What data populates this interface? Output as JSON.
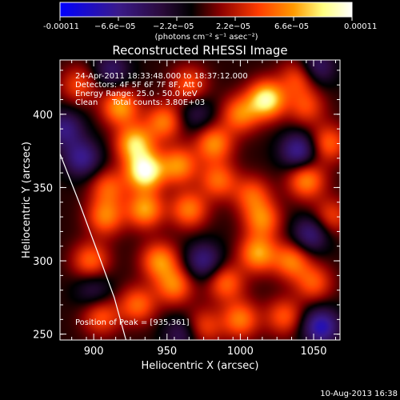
{
  "chart_data": {
    "type": "heatmap",
    "title": "Reconstructed RHESSI Image",
    "xlabel": "Heliocentric X (arcsec)",
    "ylabel": "Heliocentric Y (arcsec)",
    "xlim": [
      877,
      1068
    ],
    "ylim": [
      246,
      437
    ],
    "grid": false,
    "xticks": [
      900,
      950,
      1000,
      1050
    ],
    "yticks": [
      250,
      300,
      350,
      400
    ],
    "x_tick_labels": [
      "900",
      "950",
      "1000",
      "1050"
    ],
    "y_tick_labels": [
      "250",
      "300",
      "350",
      "400"
    ],
    "colorbar": {
      "range": [
        -0.00011,
        0.00011
      ],
      "tick_labels": [
        "-0.00011",
        "−6.6e−05",
        "−2.2e−05",
        "2.2e−05",
        "6.6e−05",
        "0.00011"
      ],
      "units_label": "(photons cm⁻² s⁻¹ asec⁻²)",
      "colors": [
        "#0000ff",
        "#3a1a8a",
        "#2a0a3a",
        "#000000",
        "#8b0000",
        "#ff3c00",
        "#ff9a00",
        "#ffff80",
        "#ffffff"
      ]
    },
    "annotations": {
      "time_range": "24-Apr-2011 18:33:48.000 to 18:37:12.000",
      "detectors": "Detectors: 4F 5F 6F 7F 8F, Att 0",
      "energy": "Energy Range: 25.0 - 50.0 keV",
      "method": "Clean",
      "total_counts": "Total counts: 3.80E+03",
      "peak": "Position of Peak = [935,361]"
    },
    "peak": {
      "x": 935,
      "y": 361
    },
    "limb_curve": [
      [
        877,
        373
      ],
      [
        890,
        340
      ],
      [
        903,
        305
      ],
      [
        914,
        275
      ],
      [
        922,
        246
      ]
    ],
    "sources": [
      {
        "x": 935,
        "y": 361,
        "w": 1.0
      },
      {
        "x": 928,
        "y": 380,
        "w": 0.75
      },
      {
        "x": 918,
        "y": 405,
        "w": 0.65
      },
      {
        "x": 948,
        "y": 395,
        "w": 0.55
      },
      {
        "x": 935,
        "y": 335,
        "w": 0.65
      },
      {
        "x": 958,
        "y": 365,
        "w": 0.6
      },
      {
        "x": 965,
        "y": 335,
        "w": 0.55
      },
      {
        "x": 908,
        "y": 330,
        "w": 0.55
      },
      {
        "x": 910,
        "y": 350,
        "w": 0.45
      },
      {
        "x": 898,
        "y": 300,
        "w": 0.5
      },
      {
        "x": 945,
        "y": 300,
        "w": 0.6
      },
      {
        "x": 955,
        "y": 283,
        "w": 0.55
      },
      {
        "x": 930,
        "y": 270,
        "w": 0.5
      },
      {
        "x": 905,
        "y": 262,
        "w": 0.45
      },
      {
        "x": 982,
        "y": 380,
        "w": 0.6
      },
      {
        "x": 1000,
        "y": 400,
        "w": 0.55
      },
      {
        "x": 1018,
        "y": 410,
        "w": 0.9
      },
      {
        "x": 985,
        "y": 355,
        "w": 0.5
      },
      {
        "x": 1015,
        "y": 328,
        "w": 0.55
      },
      {
        "x": 1012,
        "y": 305,
        "w": 0.65
      },
      {
        "x": 990,
        "y": 285,
        "w": 0.5
      },
      {
        "x": 1000,
        "y": 260,
        "w": 0.55
      },
      {
        "x": 1045,
        "y": 355,
        "w": 0.6
      },
      {
        "x": 1060,
        "y": 380,
        "w": 0.5
      },
      {
        "x": 1035,
        "y": 300,
        "w": 0.55
      },
      {
        "x": 1050,
        "y": 285,
        "w": 0.45
      },
      {
        "x": 965,
        "y": 420,
        "w": 0.45
      },
      {
        "x": 1040,
        "y": 425,
        "w": 0.45
      },
      {
        "x": 975,
        "y": 255,
        "w": 0.4
      },
      {
        "x": 1030,
        "y": 262,
        "w": 0.45
      },
      {
        "x": 890,
        "y": 420,
        "w": 0.4
      },
      {
        "x": 1008,
        "y": 345,
        "w": 0.45
      },
      {
        "x": 1062,
        "y": 330,
        "w": 0.4
      },
      {
        "x": 1045,
        "y": 405,
        "w": 0.4
      },
      {
        "x": 892,
        "y": 370,
        "w": -0.55
      },
      {
        "x": 912,
        "y": 430,
        "w": -0.4
      },
      {
        "x": 975,
        "y": 300,
        "w": -0.5
      },
      {
        "x": 1040,
        "y": 375,
        "w": -0.6
      },
      {
        "x": 1048,
        "y": 318,
        "w": -0.5
      },
      {
        "x": 1055,
        "y": 255,
        "w": -0.7
      },
      {
        "x": 880,
        "y": 390,
        "w": -0.5
      },
      {
        "x": 960,
        "y": 250,
        "w": -0.35
      },
      {
        "x": 1052,
        "y": 432,
        "w": -0.45
      },
      {
        "x": 900,
        "y": 280,
        "w": -0.3
      },
      {
        "x": 970,
        "y": 400,
        "w": -0.3
      }
    ]
  },
  "footer": {
    "timestamp": "10-Aug-2013 16:38"
  }
}
